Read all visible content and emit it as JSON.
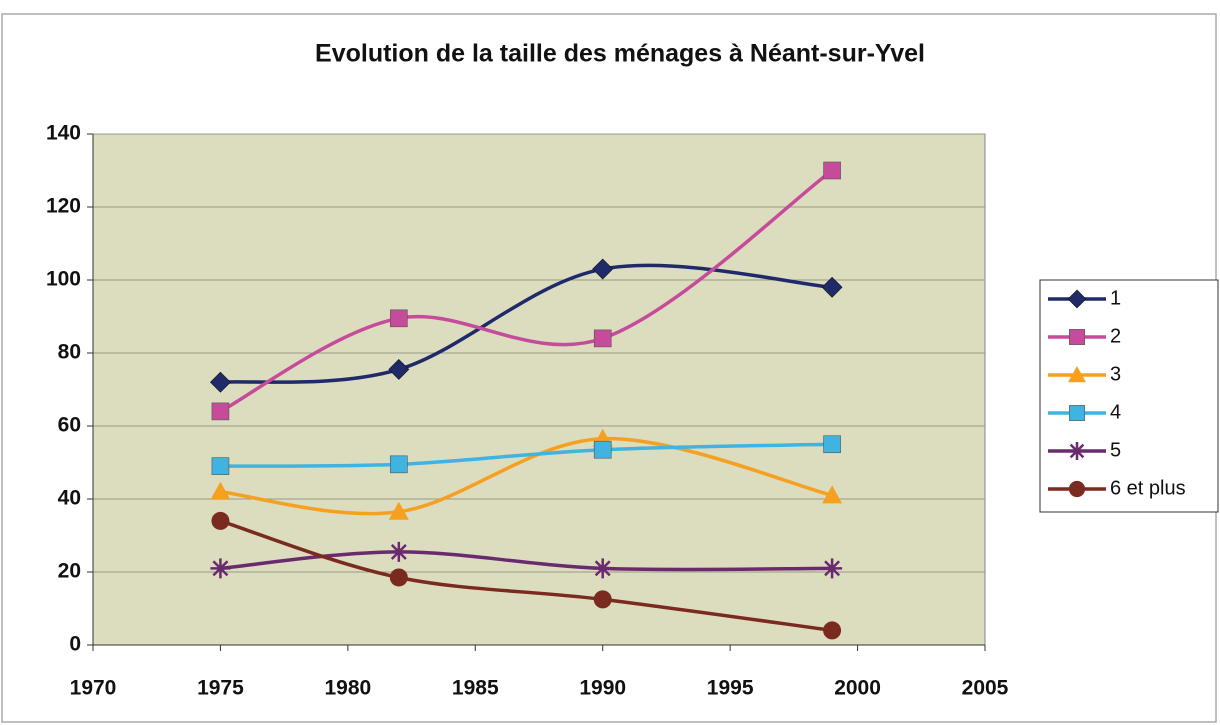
{
  "chart_data": {
    "type": "line",
    "title": "Evolution de la taille des ménages à Néant-sur-Yvel",
    "x": [
      1975,
      1982,
      1990,
      1999
    ],
    "series": [
      {
        "name": "1",
        "color": "#1f2a6b",
        "marker": "diamond",
        "values": [
          72,
          75.5,
          103,
          98
        ]
      },
      {
        "name": "2",
        "color": "#c64b9a",
        "marker": "square",
        "values": [
          64,
          89.5,
          84,
          130
        ]
      },
      {
        "name": "3",
        "color": "#f5a020",
        "marker": "triangle",
        "values": [
          42,
          36.5,
          56.5,
          41
        ]
      },
      {
        "name": "4",
        "color": "#3fb4e0",
        "marker": "square",
        "values": [
          49,
          49.5,
          53.5,
          55
        ]
      },
      {
        "name": "5",
        "color": "#6a2a6e",
        "marker": "star",
        "values": [
          21,
          25.5,
          21,
          21
        ]
      },
      {
        "name": "6 et plus",
        "color": "#7a2a1e",
        "marker": "circle",
        "values": [
          34,
          18.5,
          12.5,
          4
        ]
      }
    ],
    "xlim": [
      1970,
      2005
    ],
    "xticks": [
      1970,
      1975,
      1980,
      1985,
      1990,
      1995,
      2000,
      2005
    ],
    "ylim": [
      0,
      140
    ],
    "yticks": [
      0,
      20,
      40,
      60,
      80,
      100,
      120,
      140
    ],
    "grid": true,
    "smooth": true,
    "legend": "right"
  }
}
